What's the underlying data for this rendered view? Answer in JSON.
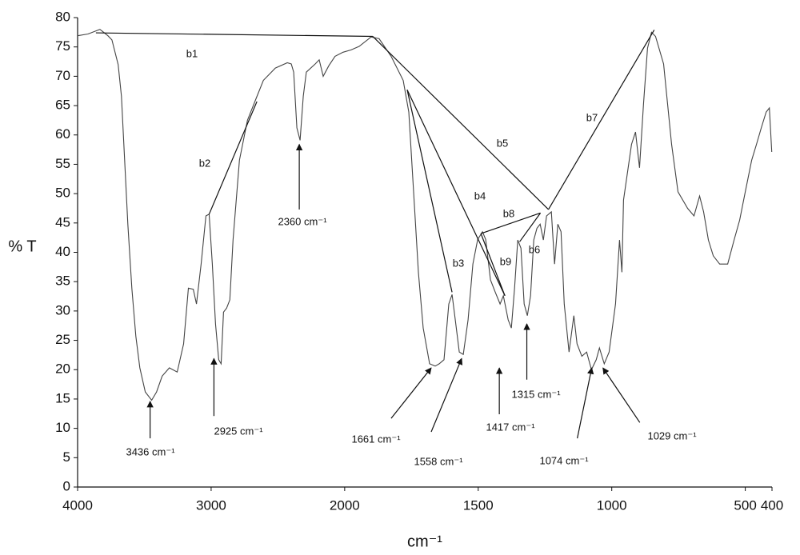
{
  "chart_data": {
    "type": "line",
    "x_label": "cm⁻¹",
    "y_label": "% T",
    "xlim": [
      4000,
      400
    ],
    "x_scale_break": 2000,
    "x_scale_factor": 2,
    "xticks": [
      4000,
      3000,
      2000,
      1500,
      1000,
      500,
      400
    ],
    "ylim": [
      0,
      80
    ],
    "yticks": [
      0,
      5,
      10,
      15,
      20,
      25,
      30,
      35,
      40,
      45,
      50,
      55,
      60,
      65,
      70,
      75,
      80
    ],
    "color": "#444444",
    "x": [
      4000,
      3922,
      3833,
      3773,
      3743,
      3696,
      3672,
      3648,
      3624,
      3594,
      3564,
      3534,
      3493,
      3445,
      3409,
      3367,
      3313,
      3254,
      3206,
      3170,
      3134,
      3110,
      3075,
      3039,
      3015,
      2991,
      2967,
      2943,
      2925,
      2907,
      2884,
      2860,
      2836,
      2788,
      2728,
      2669,
      2609,
      2519,
      2430,
      2400,
      2382,
      2358,
      2334,
      2310,
      2287,
      2221,
      2191,
      2161,
      2119,
      2072,
      2012,
      1976,
      1946,
      1901,
      1871,
      1826,
      1781,
      1760,
      1742,
      1724,
      1706,
      1682,
      1661,
      1646,
      1628,
      1610,
      1598,
      1586,
      1571,
      1556,
      1538,
      1520,
      1502,
      1484,
      1472,
      1454,
      1436,
      1418,
      1406,
      1388,
      1376,
      1364,
      1352,
      1340,
      1328,
      1316,
      1304,
      1292,
      1280,
      1268,
      1256,
      1244,
      1226,
      1214,
      1202,
      1190,
      1178,
      1160,
      1142,
      1130,
      1112,
      1094,
      1076,
      1058,
      1046,
      1028,
      1010,
      986,
      971,
      962,
      956,
      926,
      911,
      896,
      881,
      866,
      851,
      836,
      806,
      776,
      752,
      716,
      692,
      671,
      656,
      638,
      620,
      596,
      566,
      542,
      521,
      500,
      476,
      458,
      440,
      422,
      410,
      401
    ],
    "values": [
      76.9,
      77.2,
      78,
      76.9,
      76.2,
      72,
      66.6,
      55.7,
      44.8,
      33.9,
      25.7,
      20.3,
      16.2,
      14.8,
      16.2,
      18.9,
      20.3,
      19.6,
      24.4,
      33.9,
      33.7,
      31.2,
      38,
      46.2,
      46.5,
      38,
      27.8,
      21.7,
      21,
      29.8,
      30.5,
      31.9,
      42.1,
      55.7,
      62.5,
      65.9,
      69.3,
      71.4,
      72.3,
      72.1,
      70.7,
      61.2,
      59.1,
      66.6,
      70.7,
      72.1,
      72.8,
      70,
      71.8,
      73.4,
      74.1,
      74.5,
      75.1,
      76.7,
      76.4,
      73.4,
      69.3,
      63.9,
      50.3,
      36.6,
      27.1,
      21,
      20.6,
      21,
      21.7,
      31.2,
      32.8,
      28.5,
      23,
      22.6,
      28.5,
      38,
      42.2,
      43.5,
      42.2,
      35.3,
      33.2,
      31.2,
      32.6,
      28.5,
      27.1,
      33.9,
      42.1,
      40.7,
      31.2,
      29.2,
      32.6,
      42.1,
      44.1,
      44.8,
      42.1,
      46.2,
      46.9,
      38,
      44.8,
      43.5,
      31.2,
      23,
      29.2,
      24.4,
      22.3,
      23,
      20,
      21.7,
      23.7,
      21,
      23,
      31.2,
      42.1,
      36.6,
      48.9,
      58.4,
      60.5,
      54.4,
      65.3,
      74.8,
      77.5,
      76.8,
      72.1,
      58.4,
      50.3,
      47.5,
      46.2,
      49.6,
      46.9,
      42.1,
      39.4,
      38,
      38,
      42.1,
      45.5,
      50.3,
      55.7,
      58.4,
      61.2,
      63.9,
      64.6,
      57.1
    ],
    "baselines": [
      {
        "label": "b1",
        "x": [
          3863,
          1895
        ],
        "y": [
          77.4,
          76.8
        ]
      },
      {
        "label": "b2",
        "x": [
          3015,
          2657
        ],
        "y": [
          46.5,
          65.7
        ]
      },
      {
        "label": "b3",
        "x": [
          1766,
          1598
        ],
        "y": [
          67.7,
          33.2
        ]
      },
      {
        "label": "b4",
        "x": [
          1766,
          1400
        ],
        "y": [
          67.7,
          32.6
        ]
      },
      {
        "label": "b5",
        "x": [
          1895,
          1237
        ],
        "y": [
          76.8,
          47.3
        ]
      },
      {
        "label": "b6",
        "x": [
          1345,
          1267
        ],
        "y": [
          41.8,
          46.7
        ]
      },
      {
        "label": "b7",
        "x": [
          1237,
          841
        ],
        "y": [
          47.3,
          77.9
        ]
      },
      {
        "label": "b8",
        "x": [
          1490,
          1267
        ],
        "y": [
          43.2,
          46.7
        ]
      },
      {
        "label": "b9",
        "x": [
          1490,
          1400
        ],
        "y": [
          43.2,
          32.6
        ]
      }
    ],
    "arrows": [
      {
        "label": "3436 cm⁻¹",
        "x": 3457,
        "y": 14.6,
        "tail_x": 3457,
        "tail_y": 8.3
      },
      {
        "label": "2925 cm⁻¹",
        "x": 2979,
        "y": 21.9,
        "tail_x": 2979,
        "tail_y": 12.1
      },
      {
        "label": "2360 cm⁻¹",
        "x": 2340,
        "y": 58.4,
        "tail_x": 2340,
        "tail_y": 47.3
      },
      {
        "label": "1661 cm⁻¹",
        "x": 1676,
        "y": 20.3,
        "tail_x": 1826,
        "tail_y": 11.7
      },
      {
        "label": "1558 cm⁻¹",
        "x": 1562,
        "y": 21.9,
        "tail_x": 1676,
        "tail_y": 9.4
      },
      {
        "label": "1417 cm⁻¹",
        "x": 1421,
        "y": 20.3,
        "tail_x": 1421,
        "tail_y": 12.4
      },
      {
        "label": "1315 cm⁻¹",
        "x": 1318,
        "y": 27.8,
        "tail_x": 1318,
        "tail_y": 18.3
      },
      {
        "label": "1074 cm⁻¹",
        "x": 1075,
        "y": 20.3,
        "tail_x": 1129,
        "tail_y": 8.3
      },
      {
        "label": "1029 cm⁻¹",
        "x": 1033,
        "y": 20.3,
        "tail_x": 895,
        "tail_y": 11.0
      }
    ]
  }
}
